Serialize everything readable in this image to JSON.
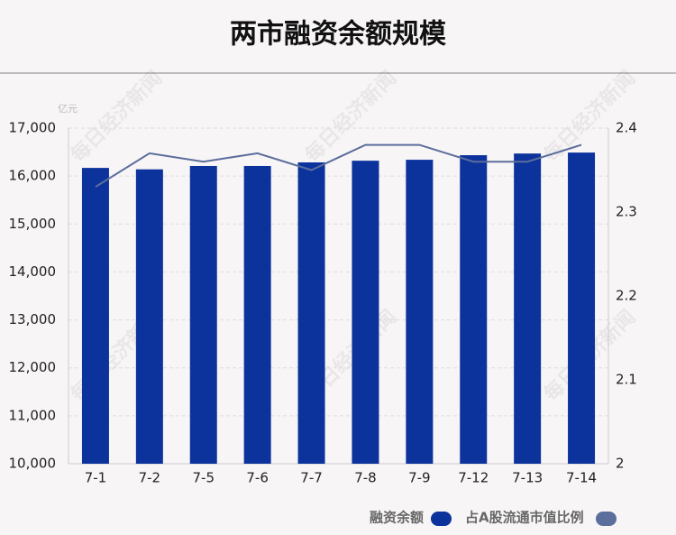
{
  "chart_data": {
    "type": "bar_line",
    "title": "两市融资余额规模",
    "y_unit": "亿元",
    "watermark": "每日经济新闻",
    "categories": [
      "7-1",
      "7-2",
      "7-5",
      "7-6",
      "7-7",
      "7-8",
      "7-9",
      "7-12",
      "7-13",
      "7-14"
    ],
    "series": [
      {
        "name": "融资余额",
        "type": "bar",
        "color": "#0c329c",
        "values": [
          16170,
          16140,
          16210,
          16210,
          16285,
          16320,
          16340,
          16435,
          16470,
          16490
        ]
      },
      {
        "name": "占A股流通市值比例",
        "type": "line",
        "axis": "y2",
        "color": "#5b6e9c",
        "values": [
          2.33,
          2.37,
          2.36,
          2.37,
          2.35,
          2.38,
          2.38,
          2.36,
          2.36,
          2.38
        ]
      }
    ],
    "ylim": [
      10000,
      17000
    ],
    "yticks": [
      {
        "value": 10000,
        "label": "10,000"
      },
      {
        "value": 11000,
        "label": "11,000"
      },
      {
        "value": 12000,
        "label": "12,000"
      },
      {
        "value": 13000,
        "label": "13,000"
      },
      {
        "value": 14000,
        "label": "14,000"
      },
      {
        "value": 15000,
        "label": "15,000"
      },
      {
        "value": 16000,
        "label": "16,000"
      },
      {
        "value": 17000,
        "label": "17,000"
      }
    ],
    "y2lim": [
      2,
      2.4
    ],
    "y2ticks": [
      2,
      2.1,
      2.2,
      2.3,
      2.4
    ],
    "grid": true
  }
}
